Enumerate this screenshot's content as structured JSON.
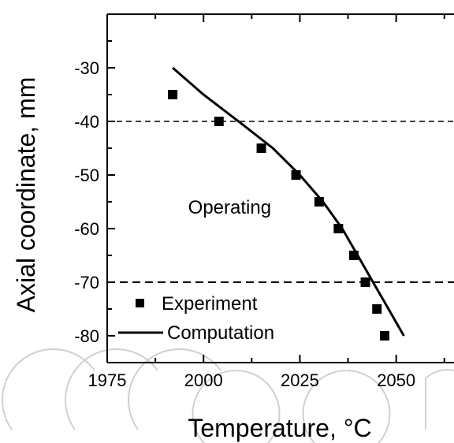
{
  "chart_data": {
    "type": "scatter",
    "xlabel": "Temperature, °C",
    "ylabel": "Axial coordinate, mm",
    "xlim": [
      1975,
      2065
    ],
    "ylim": [
      -85,
      -20
    ],
    "x_ticks": [
      1975,
      2000,
      2025,
      2050
    ],
    "y_ticks": [
      -30,
      -40,
      -50,
      -60,
      -70,
      -80
    ],
    "x_tick_labels": [
      "1975",
      "2000",
      "2025",
      "2050"
    ],
    "y_tick_labels": [
      "-30",
      "-40",
      "-50",
      "-60",
      "-70",
      "-80"
    ],
    "grid": false,
    "legend_position": "bottom-left",
    "series": [
      {
        "name": "Experiment",
        "kind": "markers",
        "marker": "square",
        "points": [
          {
            "x": 1992,
            "y": -35
          },
          {
            "x": 2004,
            "y": -40
          },
          {
            "x": 2015,
            "y": -45
          },
          {
            "x": 2024,
            "y": -50
          },
          {
            "x": 2030,
            "y": -55
          },
          {
            "x": 2035,
            "y": -60
          },
          {
            "x": 2039,
            "y": -65
          },
          {
            "x": 2042,
            "y": -70
          },
          {
            "x": 2045,
            "y": -75
          },
          {
            "x": 2047,
            "y": -80
          }
        ]
      },
      {
        "name": "Computation",
        "kind": "line",
        "points": [
          {
            "x": 1992,
            "y": -30
          },
          {
            "x": 2000,
            "y": -35
          },
          {
            "x": 2010,
            "y": -40.5
          },
          {
            "x": 2018,
            "y": -45
          },
          {
            "x": 2025,
            "y": -50
          },
          {
            "x": 2031,
            "y": -55
          },
          {
            "x": 2036,
            "y": -60
          },
          {
            "x": 2040,
            "y": -65
          },
          {
            "x": 2044,
            "y": -70
          },
          {
            "x": 2048,
            "y": -75
          },
          {
            "x": 2052,
            "y": -80
          }
        ]
      }
    ],
    "reference_lines": [
      {
        "axis": "y",
        "value": -40,
        "style": "dashed"
      },
      {
        "axis": "y",
        "value": -70,
        "style": "dashed"
      }
    ],
    "annotations": [
      {
        "text": "Operating",
        "x": 1996,
        "y": -56
      }
    ],
    "colors": {
      "foreground": "#000000",
      "background": "#ffffff",
      "watermark": "#cfcfcf"
    }
  }
}
